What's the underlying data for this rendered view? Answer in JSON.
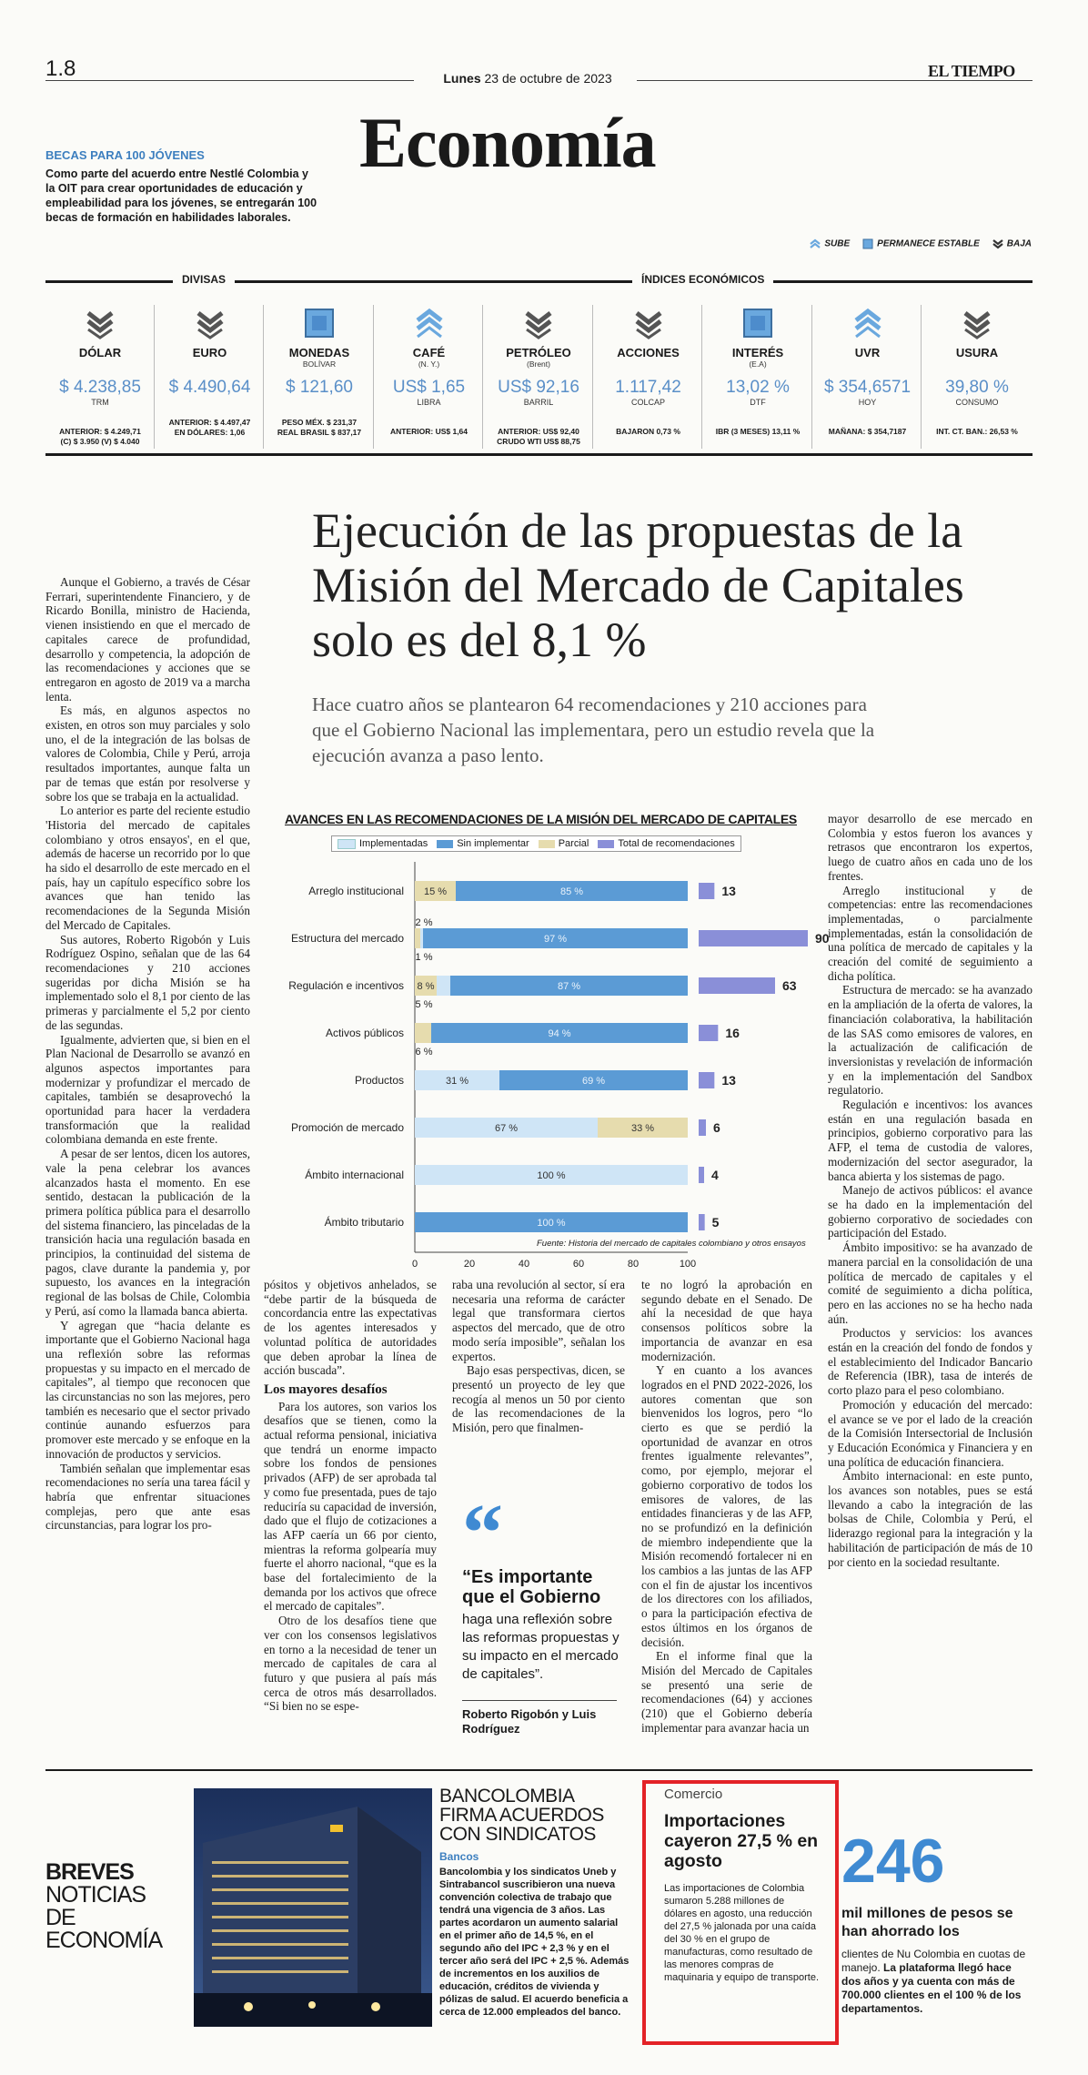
{
  "header": {
    "page_number": "1.8",
    "date_day": "Lunes",
    "date_rest": "23 de octubre de 2023",
    "brand": "EL TIEMPO",
    "section": "Economía"
  },
  "becas": {
    "title": "BECAS PARA 100 JÓVENES",
    "text": "Como parte del acuerdo entre Nestlé Colombia y la OIT para crear oportunidades de educación y empleabilidad para los jóvenes, se entregarán 100 becas de formación en habilidades laborales."
  },
  "legend": {
    "up": "SUBE",
    "same": "PERMANECE ESTABLE",
    "down": "BAJA"
  },
  "indicators": {
    "divisas_label": "DIVISAS",
    "indices_label": "ÍNDICES ECONÓMICOS",
    "items": [
      {
        "name": "DÓLAR",
        "sub": "",
        "value": "$ 4.238,85",
        "unit": "TRM",
        "foot1": "ANTERIOR: $ 4.249,71",
        "foot2": "(C) $ 3.950 (V) $ 4.040",
        "trend": "down"
      },
      {
        "name": "EURO",
        "sub": "",
        "value": "$ 4.490,64",
        "unit": "",
        "foot1": "ANTERIOR: $ 4.497,47",
        "foot2": "EN DÓLARES: 1,06",
        "trend": "down"
      },
      {
        "name": "MONEDAS",
        "sub": "BOLÍVAR",
        "value": "$ 121,60",
        "unit": "",
        "foot1": "PESO MÉX. $ 231,37",
        "foot2": "REAL BRASIL $ 837,17",
        "trend": "same"
      },
      {
        "name": "CAFÉ",
        "sub": "(N. Y.)",
        "value": "US$ 1,65",
        "unit": "LIBRA",
        "foot1": "ANTERIOR: US$ 1,64",
        "foot2": "",
        "trend": "up"
      },
      {
        "name": "PETRÓLEO",
        "sub": "(Brent)",
        "value": "US$ 92,16",
        "unit": "BARRIL",
        "foot1": "ANTERIOR: US$ 92,40",
        "foot2": "CRUDO WTI US$ 88,75",
        "trend": "down"
      },
      {
        "name": "ACCIONES",
        "sub": "",
        "value": "1.117,42",
        "unit": "COLCAP",
        "foot1": "BAJARON 0,73 %",
        "foot2": "",
        "trend": "down"
      },
      {
        "name": "INTERÉS",
        "sub": "(E.A)",
        "value": "13,02 %",
        "unit": "DTF",
        "foot1": "IBR (3 MESES) 13,11 %",
        "foot2": "",
        "trend": "same"
      },
      {
        "name": "UVR",
        "sub": "",
        "value": "$ 354,6571",
        "unit": "HOY",
        "foot1": "MAÑANA: $ 354,7187",
        "foot2": "",
        "trend": "up"
      },
      {
        "name": "USURA",
        "sub": "",
        "value": "39,80 %",
        "unit": "CONSUMO",
        "foot1": "INT. CT. BAN.: 26,53 %",
        "foot2": "",
        "trend": "down"
      }
    ]
  },
  "article": {
    "headline": "Ejecución de las propuestas de la Misión del Mercado de Capitales solo es del 8,1 %",
    "dek": "Hace cuatro años se plantearon 64 recomendaciones y 210 acciones para que el Gobierno Nacional las implementara, pero un estudio revela que la ejecución avanza a paso lento.",
    "col1": [
      "Aunque el Gobierno, a través de César Ferrari, superintendente Financiero, y de Ricardo Bonilla, ministro de Hacienda, vienen insistiendo en que el mercado de capitales carece de profundidad, desarrollo y competencia, la adopción de las recomendaciones y acciones que se entregaron en agosto de 2019 va a marcha lenta.",
      "Es más, en algunos aspectos no existen, en otros son muy parciales y solo uno, el de la integración de las bolsas de valores de Colombia, Chile y Perú, arroja resultados importantes, aunque falta un par de temas que están por resolverse y sobre los que se trabaja en la actualidad.",
      "Lo anterior es parte del reciente estudio 'Historia del mercado de capitales colombiano y otros ensayos', en el que, además de hacerse un recorrido por lo que ha sido el desarrollo de este mercado en el país, hay un capítulo específico sobre los avances que han tenido las recomendaciones de la Segunda Misión del Mercado de Capitales.",
      "Sus autores, Roberto Rigobón y Luis Rodríguez Ospino, señalan que de las 64 recomendaciones y 210 acciones sugeridas por dicha Misión se ha implementado solo el 8,1 por ciento de las primeras y parcialmente el 5,2 por ciento de las segundas.",
      "Igualmente, advierten que, si bien en el Plan Nacional de Desarrollo se avanzó en algunos aspectos importantes para modernizar y profundizar el mercado de capitales, también se desaprovechó la oportunidad para hacer la verdadera transformación que la realidad colombiana demanda en este frente.",
      "A pesar de ser lentos, dicen los autores, vale la pena celebrar los avances alcanzados hasta el momento. En ese sentido, destacan la publicación de la primera política pública para el desarrollo del sistema financiero, las pinceladas de la transición hacia una regulación basada en principios, la continuidad del sistema de pagos, clave durante la pandemia y, por supuesto, los avances en la integración regional de las bolsas de Chile, Colombia y Perú, así como la llamada banca abierta.",
      "Y agregan que “hacia delante es importante que el Gobierno Nacional haga una reflexión sobre las reformas propuestas y su impacto en el mercado de capitales”, al tiempo que reconocen que las circunstancias no son las mejores, pero también es necesario que el sector privado continúe aunando esfuerzos para promover este mercado y se enfoque en la innovación de productos y servicios.",
      "También señalan que implementar esas recomendaciones no sería una tarea fácil y habría que enfrentar situaciones complejas, pero que ante esas circunstancias, para lograr los pro-"
    ],
    "col2_p1": "pósitos y objetivos anhelados, se “debe partir de la búsqueda de concordancia entre las expectativas de los agentes interesados y voluntad política de autoridades que deben aprobar la línea de acción buscada”.",
    "col2_subhead": "Los mayores desafíos",
    "col2_p2": "Para los autores, son varios los desafíos que se tienen, como la actual reforma pensional, iniciativa que tendrá un enorme impacto sobre los fondos de pensiones privados (AFP) de ser aprobada tal y como fue presentada, pues de tajo reduciría su capacidad de inversión, dado que el flujo de cotizaciones a las AFP caería un 66 por ciento, mientras la reforma golpearía muy fuerte el ahorro nacional, “que es la base del fortalecimiento de la demanda por los activos que ofrece el mercado de capitales”.",
    "col2_p3": "Otro de los desafíos tiene que ver con los consensos legislativos en torno a la necesidad de tener un mercado de capitales de cara al futuro y que pusiera al país más cerca de otros más desarrollados. “Si bien no se espe-",
    "col3": "raba una revolución al sector, sí era necesaria una reforma de carácter legal que transformara ciertos aspectos del mercado, que de otro modo sería imposible”, señalan los expertos.",
    "col3_p2": "Bajo esas perspectivas, dicen, se presentó un proyecto de ley que recogía al menos un 50 por ciento de las recomendaciones de la Misión, pero que finalmen-",
    "col4_p1": "te no logró la aprobación en segundo debate en el Senado. De ahí la necesidad de que haya consensos políticos sobre la importancia de avanzar en esa modernización.",
    "col4_p2": "Y en cuanto a los avances logrados en el PND 2022-2026, los autores comentan que son bienvenidos los logros, pero “lo cierto es que se perdió la oportunidad de avanzar en otros frentes igualmente relevantes”, como, por ejemplo, mejorar el gobierno corporativo de todos los emisores de valores, de las entidades financieras y de las AFP, no se profundizó en la definición de miembro independiente que la Misión recomendó fortalecer ni en los cambios a las juntas de las AFP con el fin de ajustar los incentivos de los directores con los afiliados, o para la participación efectiva de estos últimos en los órganos de decisión.",
    "col4_p3": "En el informe final que la Misión del Mercado de Capitales se presentó una serie de recomendaciones (64) y acciones (210) que el Gobierno debería implementar para avanzar hacia un",
    "col5": [
      "mayor desarrollo de ese mercado en Colombia y estos fueron los avances y retrasos que encontraron los expertos, luego de cuatro años en cada uno de los frentes.",
      "Arreglo institucional y de competencias: entre las recomendaciones implementadas, o parcialmente implementadas, están la consolidación de una política de mercado de capitales y la creación del comité de seguimiento a dicha política.",
      "Estructura de mercado: se ha avanzado en la ampliación de la oferta de valores, la financiación colaborativa, la habilitación de las SAS como emisores de valores, en la actualización de calificación de inversionistas y revelación de información y en la implementación del Sandbox regulatorio.",
      "Regulación e incentivos: los avances están en una regulación basada en principios, gobierno corporativo para las AFP, el tema de custodia de valores, modernización del sector asegurador, la banca abierta y los sistemas de pago.",
      "Manejo de activos públicos: el avance se ha dado en la implementación del gobierno corporativo de sociedades con participación del Estado.",
      "Ámbito impositivo: se ha avanzado de manera parcial en la consolidación de una política de mercado de capitales y el comité de seguimiento a dicha política, pero en las acciones no se ha hecho nada aún.",
      "Productos y servicios: los avances están en la creación del fondo de fondos y el establecimiento del Indicador Bancario de Referencia (IBR), tasa de interés de corto plazo para el peso colombiano.",
      "Promoción y educación del mercado: el avance se ve por el lado de la creación de la Comisión Intersectorial de Inclusión y Educación Económica y Financiera y en una política de educación financiera.",
      "Ámbito internacional: en este punto, los avances son notables, pues se está llevando a cabo la integración de las bolsas de Chile, Colombia y Perú, el liderazgo regional para la integración y la habilitación de participación de más de 10 por ciento en la sociedad resultante."
    ]
  },
  "chart_data": {
    "type": "bar",
    "title": "AVANCES EN LAS RECOMENDACIONES DE LA MISIÓN DEL MERCADO DE CAPITALES",
    "source": "Fuente: Historia del mercado de capitales colombiano y otros ensayos",
    "categories": [
      "Arreglo institucional",
      "Estructura del mercado",
      "Regulación e incentivos",
      "Activos públicos",
      "Productos",
      "Promoción de mercado",
      "Ámbito internacional",
      "Ámbito tributario"
    ],
    "series": [
      {
        "name": "Implementadas",
        "color": "#cfe5f6",
        "values": [
          0,
          1,
          5,
          0,
          31,
          67,
          100,
          0
        ]
      },
      {
        "name": "Sin implementar",
        "color": "#5b9bd5",
        "values": [
          85,
          97,
          87,
          94,
          69,
          0,
          0,
          100
        ]
      },
      {
        "name": "Parcial",
        "color": "#e6dcae",
        "values": [
          15,
          2,
          8,
          6,
          0,
          33,
          0,
          0
        ]
      }
    ],
    "labels": [
      [
        {
          "series": 2,
          "text": "15 %"
        },
        {
          "series": 1,
          "text": "85 %"
        }
      ],
      [
        {
          "series": 2,
          "text": "2 %",
          "pos": "above"
        },
        {
          "series": 1,
          "text": "97 %"
        },
        {
          "series": 0,
          "text": "1 %",
          "pos": "below"
        }
      ],
      [
        {
          "series": 2,
          "text": "8 %"
        },
        {
          "series": 1,
          "text": "87 %"
        },
        {
          "series": 0,
          "text": "5 %",
          "pos": "below"
        }
      ],
      [
        {
          "series": 1,
          "text": "94 %"
        },
        {
          "series": 2,
          "text": "6 %",
          "pos": "below"
        }
      ],
      [
        {
          "series": 0,
          "text": "31 %"
        },
        {
          "series": 1,
          "text": "69 %"
        }
      ],
      [
        {
          "series": 0,
          "text": "67 %"
        },
        {
          "series": 2,
          "text": "33 %"
        }
      ],
      [
        {
          "series": 0,
          "text": "100 %"
        }
      ],
      [
        {
          "series": 1,
          "text": "100 %"
        }
      ]
    ],
    "totals_name": "Total de recomendaciones",
    "totals_color": "#8a8fd8",
    "totals": [
      13,
      90,
      63,
      16,
      13,
      6,
      4,
      5
    ],
    "xticks": [
      0,
      20,
      40,
      60,
      80,
      100
    ],
    "xlim": [
      0,
      100
    ]
  },
  "quote": {
    "mark": "“",
    "head": "“Es importante que el Gobierno",
    "body": "haga una reflexión sobre las reformas propuestas y su impacto en el mercado de capitales”.",
    "author": "Roberto Rigobón y Luis Rodríguez"
  },
  "breves": {
    "title1": "BREVES",
    "title2": "NOTICIAS DE ECONOMÍA",
    "bancolombia": {
      "head": "BANCOLOMBIA FIRMA ACUERDOS CON SINDICATOS",
      "kicker": "Bancos",
      "text": "Bancolombia y los sindicatos Uneb y Sintrabancol suscribieron una nueva convención colectiva de trabajo que tendrá una vigencia de 3 años. Las partes acordaron un aumento salarial en el primer año de 14,5 %, en el segundo año del IPC + 2,3 % y en el tercer año será del IPC + 2,5 %. Además de incrementos en los auxilios de educación, créditos de vivienda y pólizas de salud. El acuerdo beneficia a cerca de 12.000 empleados del banco."
    },
    "comercio": {
      "kicker": "Comercio",
      "head": "Importaciones cayeron 27,5 % en agosto",
      "text": "Las importaciones de Colombia sumaron 5.288 millones de dólares en agosto, una reducción del 27,5 % jalonada por una caída del 30 % en el grupo de manufacturas, como resultado de las menores compras de maquinaria y equipo de transporte."
    },
    "nu": {
      "number": "246",
      "head": "mil millones de pesos se han ahorrado los",
      "text_plain": "clientes de Nu Colombia en cuotas de manejo.",
      "text_bold": "La plataforma llegó hace dos años y ya cuenta con más de 700.000 clientes en el 100 % de los departamentos."
    }
  }
}
